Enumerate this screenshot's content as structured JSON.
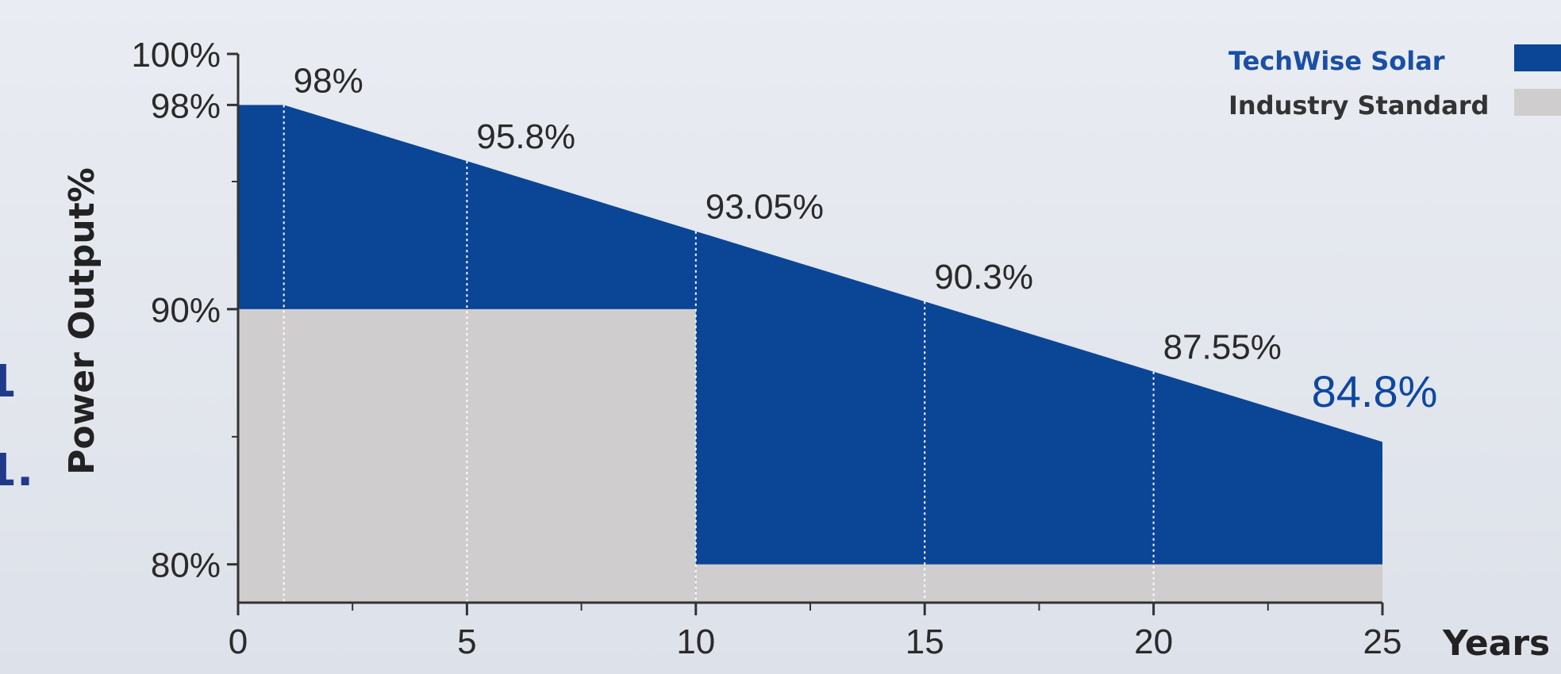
{
  "chart_data": {
    "type": "area",
    "xlabel": "Years",
    "ylabel": "Power Output%",
    "xlim": [
      0,
      25
    ],
    "ylim": [
      78.5,
      100
    ],
    "x_ticks": [
      "0",
      "5",
      "10",
      "15",
      "20",
      "25"
    ],
    "y_ticks": [
      "80%",
      "90%",
      "98%",
      "100%"
    ],
    "legend_position": "top-right",
    "grid": false,
    "series": [
      {
        "name": "TechWise Solar",
        "color": "#0b4596",
        "x": [
          0,
          1,
          5,
          10,
          15,
          20,
          25
        ],
        "values": [
          98,
          98,
          95.8,
          93.05,
          90.3,
          87.55,
          84.8
        ],
        "labels": [
          {
            "x": 1,
            "y": 98,
            "text": "98%"
          },
          {
            "x": 5,
            "y": 95.8,
            "text": "95.8%"
          },
          {
            "x": 10,
            "y": 93.05,
            "text": "93.05%"
          },
          {
            "x": 15,
            "y": 90.3,
            "text": "90.3%"
          },
          {
            "x": 20,
            "y": 87.55,
            "text": "87.55%"
          },
          {
            "x": 25,
            "y": 84.8,
            "text": "84.8%"
          }
        ]
      },
      {
        "name": "Industry Standard",
        "color": "#cfcdcd",
        "steps": [
          {
            "x_start": 0,
            "x_end": 10,
            "value": 90
          },
          {
            "x_start": 10,
            "x_end": 25,
            "value": 80
          }
        ]
      }
    ],
    "marker_x": [
      1,
      5,
      10,
      15,
      20
    ],
    "edge_glyphs": [
      "1",
      "1."
    ]
  }
}
